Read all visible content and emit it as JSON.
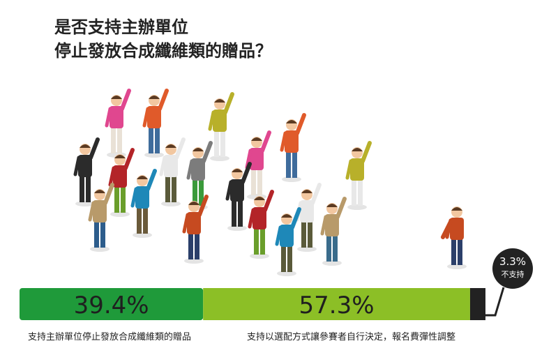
{
  "title_lines": [
    "是否支持主辦單位",
    "停止發放合成纖維類的贈品？"
  ],
  "chart_data": {
    "type": "bar",
    "orientation": "horizontal-stacked",
    "categories": [
      "支持主辦單位停止發放合成纖維類的贈品",
      "支持以選配方式讓參賽者自行決定，報名費彈性調整",
      "不支持"
    ],
    "values": [
      39.4,
      57.3,
      3.3
    ],
    "value_labels": [
      "39.4%",
      "57.3%",
      "3.3%"
    ],
    "unit": "%",
    "colors": [
      "#1f9a3a",
      "#8cbf26",
      "#222222"
    ]
  }
}
